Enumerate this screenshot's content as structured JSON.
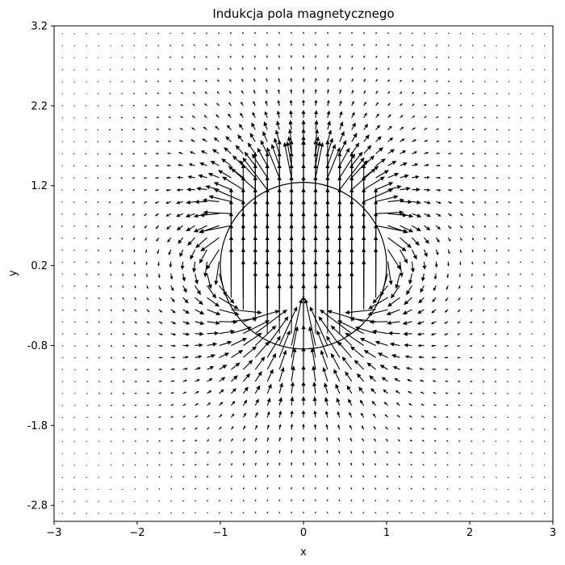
{
  "chart_data": {
    "type": "quiver",
    "title": "Indukcja pola magnetycznego",
    "xlabel": "x",
    "ylabel": "y",
    "xlim": [
      -3,
      3
    ],
    "ylim": [
      -3.0,
      3.2
    ],
    "xticks": [
      {
        "value": -3,
        "label": "−3"
      },
      {
        "value": -2,
        "label": "−2"
      },
      {
        "value": -1,
        "label": "−1"
      },
      {
        "value": 0,
        "label": "0"
      },
      {
        "value": 1,
        "label": "1"
      },
      {
        "value": 2,
        "label": "2"
      },
      {
        "value": 3,
        "label": "3"
      }
    ],
    "yticks": [
      {
        "value": 3.2,
        "label": "3.2"
      },
      {
        "value": 2.2,
        "label": "2.2"
      },
      {
        "value": 1.2,
        "label": "1.2"
      },
      {
        "value": 0.2,
        "label": "0.2"
      },
      {
        "value": -0.8,
        "label": "-0.8"
      },
      {
        "value": -1.8,
        "label": "-1.8"
      },
      {
        "value": -2.8,
        "label": "-2.8"
      }
    ],
    "circle": {
      "center": [
        0,
        0.2
      ],
      "radius": 1.0
    },
    "field": {
      "source": "uniformly magnetized sphere (dipole outside, uniform +y inside)",
      "moment_direction": [
        0,
        1
      ],
      "x_range": [
        -2.9,
        2.9
      ],
      "y_range": [
        -2.9,
        3.1
      ],
      "grid_n": 41,
      "inside_magnitude": 2.0
    },
    "grid": false,
    "legend": "none"
  }
}
